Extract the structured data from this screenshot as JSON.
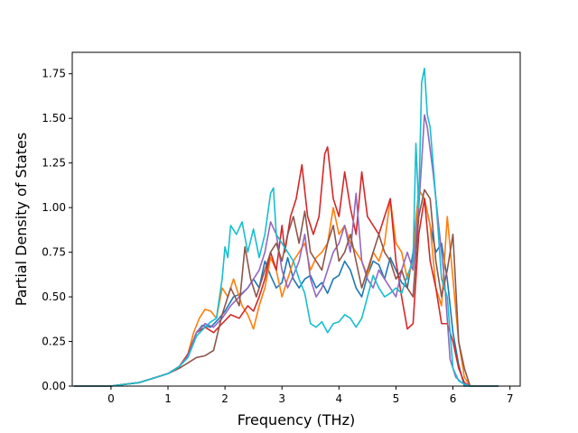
{
  "chart_data": {
    "type": "line",
    "title": "",
    "xlabel": "Frequency (THz)",
    "ylabel": "Partial Density of States",
    "xlim": [
      -0.68,
      7.18
    ],
    "ylim": [
      0,
      1.87
    ],
    "xticks": [
      0,
      1,
      2,
      3,
      4,
      5,
      6,
      7
    ],
    "yticks": [
      0.0,
      0.25,
      0.5,
      0.75,
      1.0,
      1.25,
      1.5,
      1.75
    ],
    "ytick_labels": [
      "0.00",
      "0.25",
      "0.50",
      "0.75",
      "1.00",
      "1.25",
      "1.50",
      "1.75"
    ],
    "grid": false,
    "legend": "none",
    "series": [
      {
        "color": "#1f77b4",
        "x": [
          -0.65,
          0,
          0.5,
          0.8,
          1.0,
          1.2,
          1.35,
          1.5,
          1.6,
          1.75,
          1.9,
          2.0,
          2.15,
          2.3,
          2.4,
          2.5,
          2.6,
          2.7,
          2.8,
          2.9,
          3.0,
          3.1,
          3.2,
          3.3,
          3.4,
          3.5,
          3.6,
          3.7,
          3.8,
          3.9,
          4.0,
          4.1,
          4.2,
          4.3,
          4.4,
          4.5,
          4.6,
          4.7,
          4.8,
          4.9,
          5.0,
          5.1,
          5.2,
          5.3,
          5.4,
          5.5,
          5.6,
          5.7,
          5.8,
          5.9,
          6.0,
          6.1,
          6.2,
          6.3,
          6.8
        ],
        "y": [
          0,
          0,
          0.02,
          0.05,
          0.07,
          0.11,
          0.17,
          0.3,
          0.34,
          0.33,
          0.38,
          0.42,
          0.5,
          0.52,
          0.55,
          0.6,
          0.55,
          0.7,
          0.62,
          0.55,
          0.58,
          0.72,
          0.6,
          0.55,
          0.6,
          0.62,
          0.55,
          0.58,
          0.52,
          0.6,
          0.62,
          0.7,
          0.65,
          0.55,
          0.5,
          0.62,
          0.7,
          0.68,
          0.6,
          0.72,
          0.65,
          0.58,
          0.55,
          0.75,
          1.1,
          1.05,
          0.9,
          0.75,
          0.8,
          0.6,
          0.3,
          0.12,
          0,
          0,
          0
        ]
      },
      {
        "color": "#ff7f0e",
        "x": [
          -0.65,
          0,
          0.5,
          0.8,
          1.0,
          1.2,
          1.35,
          1.45,
          1.55,
          1.65,
          1.75,
          1.85,
          1.95,
          2.05,
          2.15,
          2.3,
          2.4,
          2.5,
          2.6,
          2.7,
          2.8,
          2.9,
          3.0,
          3.1,
          3.2,
          3.3,
          3.4,
          3.5,
          3.6,
          3.7,
          3.8,
          3.9,
          4.0,
          4.1,
          4.2,
          4.3,
          4.4,
          4.5,
          4.6,
          4.7,
          4.8,
          4.9,
          5.0,
          5.1,
          5.2,
          5.3,
          5.4,
          5.5,
          5.6,
          5.7,
          5.8,
          5.9,
          6.0,
          6.1,
          6.2,
          6.3,
          6.8
        ],
        "y": [
          0,
          0,
          0.02,
          0.05,
          0.07,
          0.11,
          0.18,
          0.3,
          0.38,
          0.43,
          0.42,
          0.38,
          0.55,
          0.5,
          0.6,
          0.45,
          0.4,
          0.32,
          0.45,
          0.55,
          0.72,
          0.65,
          0.5,
          0.6,
          0.7,
          0.75,
          0.8,
          0.65,
          0.72,
          0.75,
          0.8,
          1.0,
          0.85,
          0.9,
          0.8,
          0.75,
          0.7,
          0.62,
          0.75,
          0.7,
          0.8,
          1.05,
          0.8,
          0.75,
          0.6,
          0.7,
          1.1,
          1.05,
          0.9,
          0.55,
          0.45,
          0.95,
          0.6,
          0.25,
          0.05,
          0,
          0
        ]
      },
      {
        "color": "#2ca02c",
        "x": [],
        "y": []
      },
      {
        "color": "#d62728",
        "x": [
          -0.65,
          0,
          0.5,
          0.8,
          1.0,
          1.2,
          1.35,
          1.5,
          1.65,
          1.8,
          1.95,
          2.1,
          2.25,
          2.4,
          2.5,
          2.6,
          2.7,
          2.8,
          2.9,
          3.0,
          3.05,
          3.15,
          3.25,
          3.35,
          3.45,
          3.55,
          3.65,
          3.75,
          3.8,
          3.9,
          4.0,
          4.1,
          4.2,
          4.3,
          4.4,
          4.5,
          4.6,
          4.7,
          4.8,
          4.9,
          5.0,
          5.1,
          5.2,
          5.3,
          5.4,
          5.5,
          5.6,
          5.7,
          5.8,
          5.9,
          6.0,
          6.1,
          6.2,
          6.3,
          6.8
        ],
        "y": [
          0,
          0,
          0.02,
          0.05,
          0.07,
          0.11,
          0.18,
          0.3,
          0.33,
          0.3,
          0.35,
          0.4,
          0.38,
          0.45,
          0.42,
          0.5,
          0.6,
          0.75,
          0.65,
          0.9,
          0.75,
          0.95,
          1.05,
          1.24,
          0.95,
          0.85,
          0.95,
          1.3,
          1.34,
          1.05,
          0.95,
          1.2,
          1.0,
          0.85,
          1.2,
          0.95,
          0.9,
          0.85,
          0.95,
          1.05,
          0.7,
          0.5,
          0.32,
          0.35,
          0.85,
          1.05,
          0.7,
          0.55,
          0.35,
          0.35,
          0.25,
          0.1,
          0.02,
          0,
          0
        ]
      },
      {
        "color": "#9467bd",
        "x": [
          -0.65,
          0,
          0.5,
          0.8,
          1.0,
          1.2,
          1.35,
          1.5,
          1.65,
          1.8,
          1.95,
          2.1,
          2.25,
          2.4,
          2.5,
          2.6,
          2.7,
          2.8,
          2.9,
          3.0,
          3.1,
          3.2,
          3.3,
          3.4,
          3.5,
          3.6,
          3.7,
          3.8,
          3.9,
          4.0,
          4.1,
          4.2,
          4.3,
          4.4,
          4.5,
          4.6,
          4.7,
          4.8,
          4.9,
          5.0,
          5.1,
          5.2,
          5.3,
          5.4,
          5.45,
          5.5,
          5.55,
          5.65,
          5.75,
          5.85,
          5.95,
          6.05,
          6.15,
          6.3,
          6.8
        ],
        "y": [
          0,
          0,
          0.02,
          0.05,
          0.07,
          0.11,
          0.17,
          0.3,
          0.35,
          0.33,
          0.38,
          0.45,
          0.5,
          0.55,
          0.6,
          0.65,
          0.75,
          0.92,
          0.85,
          0.65,
          0.55,
          0.62,
          0.7,
          0.85,
          0.6,
          0.5,
          0.55,
          0.65,
          0.75,
          0.8,
          0.9,
          0.75,
          1.08,
          0.7,
          0.6,
          0.55,
          0.65,
          0.6,
          0.55,
          0.5,
          0.65,
          0.75,
          0.65,
          1.0,
          1.25,
          1.52,
          1.45,
          1.2,
          0.9,
          0.6,
          0.15,
          0.05,
          0.02,
          0,
          0
        ]
      },
      {
        "color": "#8c564b",
        "x": [
          -0.65,
          0,
          0.5,
          0.8,
          1.0,
          1.2,
          1.35,
          1.5,
          1.65,
          1.8,
          1.95,
          2.1,
          2.25,
          2.35,
          2.45,
          2.55,
          2.7,
          2.8,
          2.9,
          3.0,
          3.1,
          3.2,
          3.3,
          3.4,
          3.5,
          3.6,
          3.7,
          3.8,
          3.9,
          4.0,
          4.1,
          4.2,
          4.3,
          4.4,
          4.5,
          4.6,
          4.7,
          4.8,
          4.9,
          5.0,
          5.1,
          5.2,
          5.3,
          5.4,
          5.5,
          5.6,
          5.7,
          5.8,
          5.9,
          6.0,
          6.1,
          6.2,
          6.3,
          6.8
        ],
        "y": [
          0,
          0,
          0.02,
          0.05,
          0.07,
          0.1,
          0.13,
          0.16,
          0.17,
          0.2,
          0.4,
          0.55,
          0.45,
          0.78,
          0.6,
          0.5,
          0.65,
          0.75,
          0.8,
          0.7,
          0.85,
          0.95,
          0.8,
          0.98,
          0.75,
          0.7,
          0.65,
          0.8,
          0.9,
          0.7,
          0.75,
          0.85,
          0.7,
          0.55,
          0.65,
          0.75,
          0.85,
          0.75,
          0.7,
          0.6,
          0.65,
          0.55,
          0.5,
          0.95,
          1.1,
          1.05,
          0.7,
          0.5,
          0.65,
          0.85,
          0.25,
          0.1,
          0,
          0
        ]
      },
      {
        "color": "#17becf",
        "x": [
          -0.65,
          0,
          0.5,
          0.8,
          1.0,
          1.2,
          1.35,
          1.5,
          1.65,
          1.75,
          1.85,
          1.95,
          2.0,
          2.05,
          2.1,
          2.2,
          2.3,
          2.4,
          2.5,
          2.6,
          2.7,
          2.8,
          2.85,
          2.9,
          3.0,
          3.1,
          3.2,
          3.3,
          3.4,
          3.5,
          3.6,
          3.7,
          3.8,
          3.9,
          4.0,
          4.1,
          4.2,
          4.3,
          4.4,
          4.5,
          4.6,
          4.7,
          4.8,
          4.9,
          5.0,
          5.1,
          5.2,
          5.3,
          5.35,
          5.4,
          5.45,
          5.5,
          5.55,
          5.6,
          5.7,
          5.8,
          5.9,
          6.0,
          6.1,
          6.2,
          6.3,
          6.8
        ],
        "y": [
          0,
          0,
          0.02,
          0.05,
          0.07,
          0.11,
          0.16,
          0.28,
          0.33,
          0.36,
          0.38,
          0.6,
          0.78,
          0.72,
          0.9,
          0.85,
          0.92,
          0.75,
          0.88,
          0.72,
          0.85,
          1.08,
          1.11,
          0.85,
          0.8,
          0.75,
          0.7,
          0.6,
          0.52,
          0.35,
          0.33,
          0.36,
          0.3,
          0.35,
          0.36,
          0.4,
          0.38,
          0.33,
          0.38,
          0.5,
          0.62,
          0.55,
          0.5,
          0.52,
          0.55,
          0.52,
          0.62,
          0.7,
          1.36,
          1.0,
          1.7,
          1.78,
          1.52,
          1.45,
          1.05,
          0.6,
          0.5,
          0.1,
          0.03,
          0.01,
          0,
          0
        ]
      }
    ]
  }
}
